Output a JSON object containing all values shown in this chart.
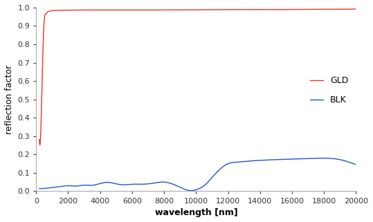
{
  "title": "",
  "xlabel": "wavelength [nm]",
  "ylabel": "reflection factor",
  "xlim": [
    0,
    20000
  ],
  "ylim": [
    0,
    1.0
  ],
  "yticks": [
    0,
    0.1,
    0.2,
    0.3,
    0.4,
    0.5,
    0.6,
    0.7,
    0.8,
    0.9,
    1
  ],
  "xticks": [
    0,
    2000,
    4000,
    6000,
    8000,
    10000,
    12000,
    14000,
    16000,
    18000,
    20000
  ],
  "gld_color": "#EE3322",
  "blk_color": "#2255CC",
  "legend_labels": [
    "GLD",
    "BLK"
  ],
  "background_color": "#ffffff",
  "linewidth": 1.0,
  "gld_x": [
    200,
    300,
    400,
    500,
    600,
    700,
    800,
    1000,
    1500,
    2000,
    4000,
    6000,
    8000,
    10000,
    12000,
    14000,
    16000,
    18000,
    19000,
    20000
  ],
  "gld_y": [
    0.28,
    0.36,
    0.7,
    0.93,
    0.965,
    0.975,
    0.98,
    0.983,
    0.985,
    0.986,
    0.987,
    0.987,
    0.987,
    0.988,
    0.989,
    0.989,
    0.99,
    0.991,
    0.991,
    0.992
  ],
  "blk_x": [
    200,
    500,
    1000,
    1500,
    2000,
    2500,
    3000,
    3500,
    4000,
    4500,
    5000,
    5500,
    6000,
    6500,
    7000,
    7500,
    8000,
    8500,
    9000,
    9300,
    9500,
    9700,
    10000,
    10500,
    11000,
    11500,
    12000,
    12500,
    13000,
    14000,
    15000,
    16000,
    17000,
    18000,
    18500,
    19000,
    19500,
    20000
  ],
  "blk_y": [
    0.015,
    0.015,
    0.02,
    0.025,
    0.03,
    0.028,
    0.033,
    0.032,
    0.042,
    0.048,
    0.04,
    0.035,
    0.038,
    0.038,
    0.04,
    0.046,
    0.05,
    0.04,
    0.022,
    0.01,
    0.005,
    0.003,
    0.008,
    0.03,
    0.075,
    0.12,
    0.15,
    0.158,
    0.162,
    0.168,
    0.172,
    0.175,
    0.178,
    0.18,
    0.178,
    0.172,
    0.16,
    0.145
  ]
}
